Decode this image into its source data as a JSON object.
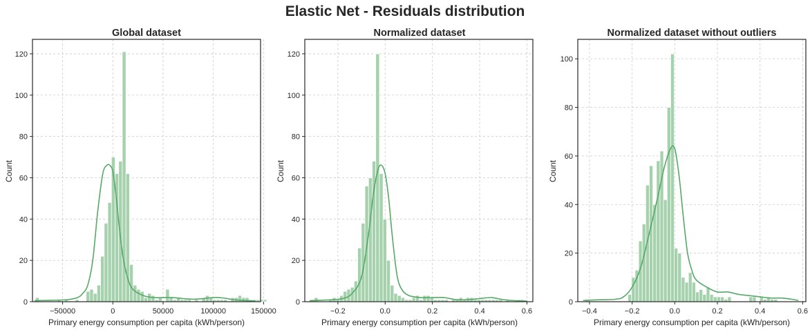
{
  "figure": {
    "suptitle": "Elastic Net - Residuals distribution"
  },
  "colors": {
    "bar_fill": "#a5d1ad",
    "bar_edge": "#ffffff",
    "kde_line": "#55a868",
    "grid": "#c9c9c9",
    "frame": "#262626"
  },
  "chart_data": [
    {
      "type": "histogram",
      "title": "Global dataset",
      "xlabel": "Primary energy consumption per capita (kWh/person)",
      "ylabel": "Count",
      "xlim": [
        -80000,
        147000
      ],
      "ylim": [
        0,
        127
      ],
      "xticks": [
        -50000,
        0,
        50000,
        100000,
        150000
      ],
      "xtick_labels": [
        "−50000",
        "0",
        "50000",
        "100000",
        "150000"
      ],
      "yticks": [
        0,
        20,
        40,
        60,
        80,
        100,
        120
      ],
      "ytick_labels": [
        "0",
        "20",
        "40",
        "60",
        "80",
        "100",
        "120"
      ],
      "grid": true,
      "bin_start": -77000,
      "bin_width": 3600,
      "counts": [
        2,
        0,
        0,
        0,
        0,
        0,
        1,
        0,
        1,
        0,
        0,
        1,
        0,
        0,
        5,
        6,
        4,
        8,
        22,
        38,
        48,
        70,
        62,
        68,
        121,
        62,
        18,
        8,
        6,
        5,
        2,
        4,
        3,
        1,
        2,
        0,
        6,
        2,
        1,
        2,
        1,
        1,
        1,
        0,
        1,
        0,
        2,
        3,
        2,
        1,
        1,
        1,
        1,
        0,
        2,
        2,
        3,
        2,
        2,
        1,
        1,
        1,
        1,
        1
      ],
      "kde_x": [
        -78000,
        -60000,
        -45000,
        -35000,
        -30000,
        -25000,
        -20000,
        -15000,
        -10000,
        -6000,
        -3000,
        0,
        3000,
        6000,
        10000,
        15000,
        20000,
        30000,
        40000,
        50000,
        60000,
        70000,
        80000,
        90000,
        100000,
        110000,
        120000,
        130000,
        142000
      ],
      "kde_y": [
        0.5,
        0.7,
        1,
        2,
        4,
        8,
        20,
        44,
        62,
        66,
        66,
        63,
        52,
        38,
        22,
        11,
        6,
        3,
        2,
        2,
        2,
        1.5,
        1.2,
        1.5,
        2,
        1.8,
        1,
        0.6,
        0.3
      ]
    },
    {
      "type": "histogram",
      "title": "Normalized dataset",
      "xlabel": "Primary energy consumption per capita (kWh/person)",
      "ylabel": "Count",
      "xlim": [
        -0.34,
        0.625
      ],
      "ylim": [
        0,
        127
      ],
      "xticks": [
        -0.2,
        0.0,
        0.2,
        0.4,
        0.6
      ],
      "xtick_labels": [
        "−0.2",
        "0.0",
        "0.2",
        "0.4",
        "0.6"
      ],
      "yticks": [
        0,
        20,
        40,
        60,
        80,
        100,
        120
      ],
      "ytick_labels": [
        "0",
        "20",
        "40",
        "60",
        "80",
        "100",
        "120"
      ],
      "grid": true,
      "bin_start": -0.315,
      "bin_width": 0.0153,
      "counts": [
        1,
        2,
        0,
        0,
        0,
        1,
        2,
        1,
        3,
        5,
        6,
        7,
        10,
        26,
        38,
        56,
        60,
        68,
        120,
        62,
        40,
        20,
        8,
        4,
        3,
        2,
        1,
        1,
        2,
        3,
        1,
        3,
        3,
        2,
        1,
        1,
        1,
        1,
        0,
        1,
        1,
        2,
        1,
        2,
        2,
        1,
        1,
        1,
        1,
        1,
        1,
        1,
        1,
        0,
        1,
        0,
        0,
        1,
        1
      ],
      "kde_x": [
        -0.32,
        -0.25,
        -0.18,
        -0.14,
        -0.1,
        -0.07,
        -0.05,
        -0.03,
        -0.015,
        0,
        0.015,
        0.03,
        0.05,
        0.07,
        0.1,
        0.15,
        0.2,
        0.25,
        0.3,
        0.35,
        0.4,
        0.45,
        0.5,
        0.55,
        0.6
      ],
      "kde_y": [
        0.5,
        0.8,
        1.5,
        4,
        12,
        33,
        52,
        64,
        66,
        62,
        50,
        32,
        13,
        6,
        3,
        2,
        2,
        2,
        1,
        1,
        1.5,
        2,
        1,
        0.5,
        0.3
      ]
    },
    {
      "type": "histogram",
      "title": "Normalized dataset without outliers",
      "xlabel": "Primary energy consumption per capita (kWh/person)",
      "ylabel": "Count",
      "xlim": [
        -0.455,
        0.615
      ],
      "ylim": [
        0,
        108
      ],
      "xticks": [
        -0.4,
        -0.2,
        0.0,
        0.2,
        0.4,
        0.6
      ],
      "xtick_labels": [
        "−0.4",
        "−0.2",
        "0.0",
        "0.2",
        "0.4",
        "0.6"
      ],
      "yticks": [
        0,
        20,
        40,
        60,
        80,
        100
      ],
      "ytick_labels": [
        "0",
        "20",
        "40",
        "60",
        "80",
        "100"
      ],
      "grid": true,
      "bin_start": -0.42,
      "bin_width": 0.0167,
      "counts": [
        1,
        0,
        0,
        0,
        0,
        0,
        0,
        0,
        0,
        0,
        0,
        0,
        3,
        10,
        13,
        25,
        32,
        48,
        56,
        40,
        58,
        62,
        42,
        80,
        102,
        22,
        20,
        10,
        8,
        12,
        8,
        4,
        5,
        3,
        6,
        3,
        2,
        2,
        2,
        1,
        2,
        0,
        0,
        0,
        0,
        0,
        2,
        2,
        0,
        2,
        1,
        2,
        1,
        1,
        0,
        0
      ],
      "kde_x": [
        -0.43,
        -0.35,
        -0.28,
        -0.24,
        -0.2,
        -0.16,
        -0.12,
        -0.08,
        -0.05,
        -0.02,
        0,
        0.02,
        0.04,
        0.06,
        0.08,
        0.1,
        0.15,
        0.2,
        0.25,
        0.3,
        0.35,
        0.4,
        0.45,
        0.5,
        0.55,
        0.58
      ],
      "kde_y": [
        0.5,
        0.8,
        1,
        2,
        6,
        14,
        28,
        43,
        55,
        63,
        63,
        52,
        35,
        20,
        13,
        9,
        6,
        4,
        4,
        3,
        2.5,
        2,
        1.5,
        1.5,
        1,
        0.5
      ]
    }
  ]
}
